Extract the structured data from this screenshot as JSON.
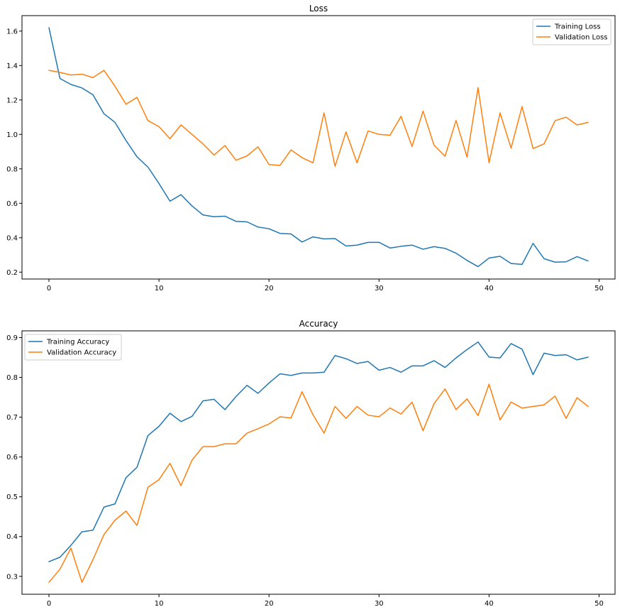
{
  "colors": {
    "training": "#1f77b4",
    "validation": "#ff7f0e"
  },
  "chart_data": [
    {
      "type": "line",
      "title": "Loss",
      "xlim": [
        -2.45,
        51.45
      ],
      "ylim": [
        0.16,
        1.69
      ],
      "xticks": [
        0,
        10,
        20,
        30,
        40,
        50
      ],
      "yticks": [
        0.2,
        0.4,
        0.6,
        0.8,
        1.0,
        1.2,
        1.4,
        1.6
      ],
      "ytick_labels": [
        "0.2",
        "0.4",
        "0.6",
        "0.8",
        "1.0",
        "1.2",
        "1.4",
        "1.6"
      ],
      "legend": "top-right",
      "x": [
        0,
        1,
        2,
        3,
        4,
        5,
        6,
        7,
        8,
        9,
        10,
        11,
        12,
        13,
        14,
        15,
        16,
        17,
        18,
        19,
        20,
        21,
        22,
        23,
        24,
        25,
        26,
        27,
        28,
        29,
        30,
        31,
        32,
        33,
        34,
        35,
        36,
        37,
        38,
        39,
        40,
        41,
        42,
        43,
        44,
        45,
        46,
        47,
        48,
        49
      ],
      "series": [
        {
          "name": "Training Loss",
          "color": "#1f77b4",
          "values": [
            1.62,
            1.325,
            1.29,
            1.27,
            1.23,
            1.12,
            1.07,
            0.965,
            0.87,
            0.81,
            0.715,
            0.612,
            0.65,
            0.585,
            0.532,
            0.522,
            0.525,
            0.495,
            0.492,
            0.462,
            0.452,
            0.425,
            0.422,
            0.375,
            0.405,
            0.393,
            0.395,
            0.352,
            0.357,
            0.373,
            0.373,
            0.34,
            0.35,
            0.357,
            0.333,
            0.348,
            0.338,
            0.31,
            0.268,
            0.232,
            0.282,
            0.292,
            0.25,
            0.245,
            0.367,
            0.278,
            0.258,
            0.26,
            0.29,
            0.265
          ]
        },
        {
          "name": "Validation Loss",
          "color": "#ff7f0e",
          "values": [
            1.372,
            1.36,
            1.345,
            1.35,
            1.33,
            1.372,
            1.28,
            1.175,
            1.215,
            1.08,
            1.045,
            0.975,
            1.055,
            1.0,
            0.945,
            0.88,
            0.935,
            0.85,
            0.875,
            0.928,
            0.825,
            0.82,
            0.91,
            0.865,
            0.835,
            1.125,
            0.815,
            1.015,
            0.835,
            1.02,
            1.0,
            0.995,
            1.105,
            0.93,
            1.135,
            0.937,
            0.873,
            1.082,
            0.868,
            1.272,
            0.835,
            1.125,
            0.92,
            1.162,
            0.918,
            0.945,
            1.08,
            1.1,
            1.055,
            1.07
          ]
        }
      ]
    },
    {
      "type": "line",
      "title": "Accuracy",
      "xlim": [
        -2.45,
        51.45
      ],
      "ylim": [
        0.255,
        0.917
      ],
      "xticks": [
        0,
        10,
        20,
        30,
        40,
        50
      ],
      "yticks": [
        0.3,
        0.4,
        0.5,
        0.6,
        0.7,
        0.8,
        0.9
      ],
      "ytick_labels": [
        "0.3",
        "0.4",
        "0.5",
        "0.6",
        "0.7",
        "0.8",
        "0.9"
      ],
      "legend": "top-left",
      "x": [
        0,
        1,
        2,
        3,
        4,
        5,
        6,
        7,
        8,
        9,
        10,
        11,
        12,
        13,
        14,
        15,
        16,
        17,
        18,
        19,
        20,
        21,
        22,
        23,
        24,
        25,
        26,
        27,
        28,
        29,
        30,
        31,
        32,
        33,
        34,
        35,
        36,
        37,
        38,
        39,
        40,
        41,
        42,
        43,
        44,
        45,
        46,
        47,
        48,
        49
      ],
      "series": [
        {
          "name": "Training Accuracy",
          "color": "#1f77b4",
          "values": [
            0.337,
            0.348,
            0.378,
            0.412,
            0.416,
            0.474,
            0.482,
            0.548,
            0.574,
            0.654,
            0.677,
            0.71,
            0.689,
            0.702,
            0.741,
            0.745,
            0.719,
            0.752,
            0.78,
            0.76,
            0.786,
            0.809,
            0.805,
            0.811,
            0.811,
            0.813,
            0.855,
            0.847,
            0.835,
            0.84,
            0.818,
            0.825,
            0.813,
            0.829,
            0.829,
            0.842,
            0.825,
            0.849,
            0.87,
            0.889,
            0.851,
            0.849,
            0.885,
            0.871,
            0.807,
            0.861,
            0.855,
            0.857,
            0.844,
            0.851
          ]
        },
        {
          "name": "Validation Accuracy",
          "color": "#ff7f0e",
          "values": [
            0.285,
            0.318,
            0.371,
            0.285,
            0.342,
            0.405,
            0.441,
            0.464,
            0.428,
            0.524,
            0.543,
            0.584,
            0.528,
            0.592,
            0.626,
            0.626,
            0.633,
            0.633,
            0.66,
            0.671,
            0.683,
            0.701,
            0.698,
            0.764,
            0.706,
            0.66,
            0.727,
            0.697,
            0.727,
            0.705,
            0.701,
            0.723,
            0.708,
            0.738,
            0.666,
            0.734,
            0.771,
            0.719,
            0.746,
            0.704,
            0.783,
            0.693,
            0.738,
            0.723,
            0.727,
            0.731,
            0.753,
            0.697,
            0.749,
            0.727
          ]
        }
      ]
    }
  ]
}
